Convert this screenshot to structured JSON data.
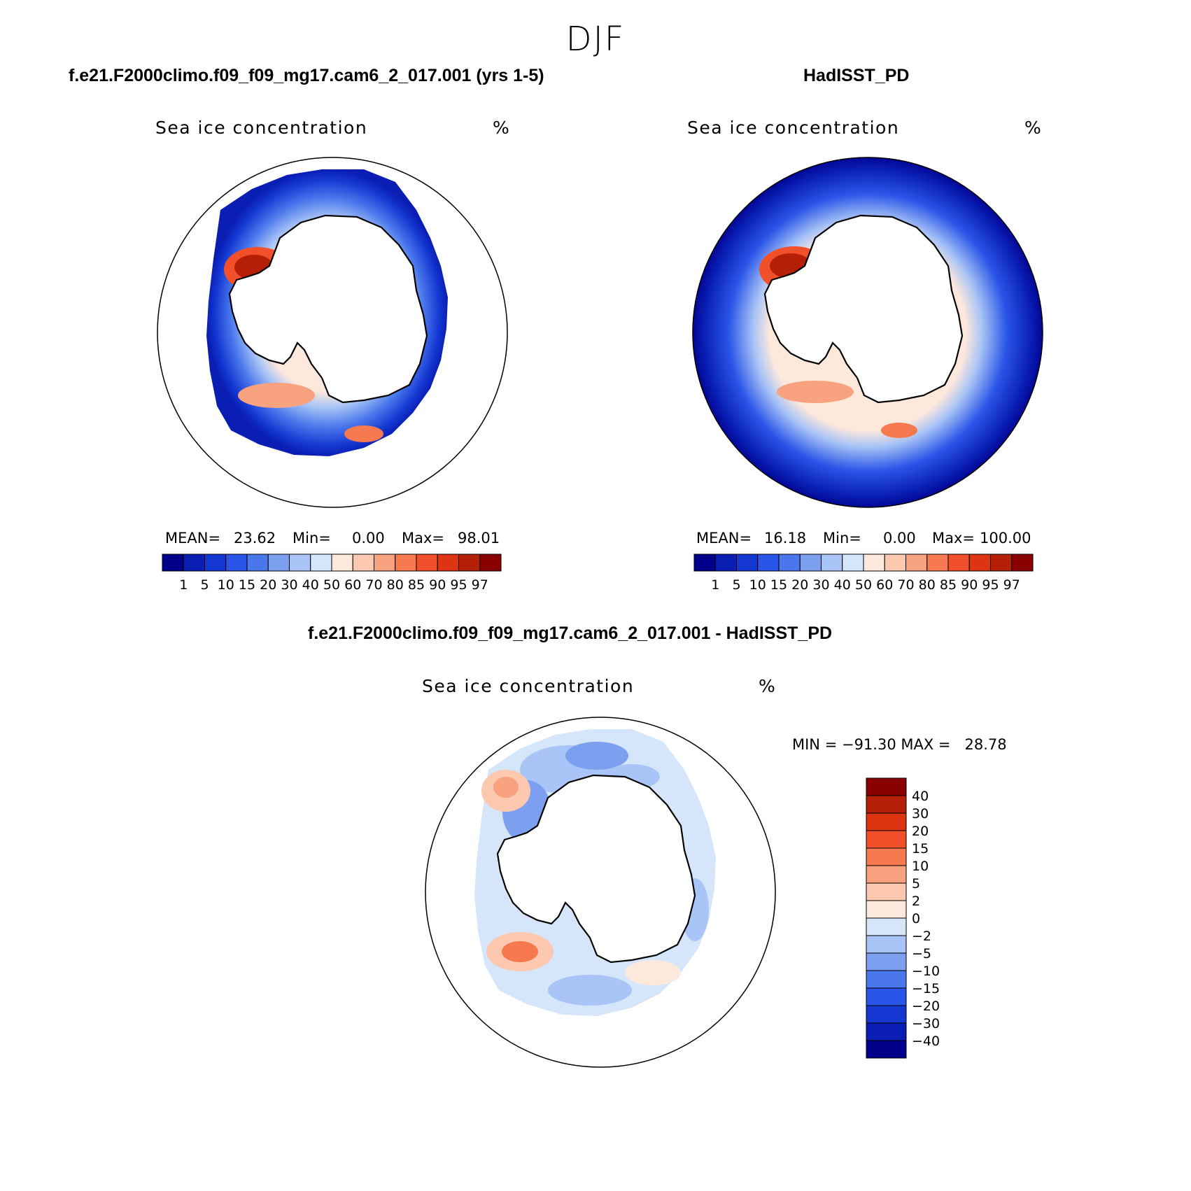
{
  "title": "DJF",
  "panels": {
    "left": {
      "case_title": "f.e21.F2000climo.f09_f09_mg17.cam6_2_017.001 (yrs 1-5)",
      "variable": "Sea ice concentration",
      "units": "%",
      "mean_label": "MEAN=",
      "mean_value": "23.62",
      "min_label": "Min=",
      "min_value": "0.00",
      "max_label": "Max=",
      "max_value": "98.01"
    },
    "right": {
      "case_title": "HadISST_PD",
      "variable": "Sea ice concentration",
      "units": "%",
      "mean_label": "MEAN=",
      "mean_value": "16.18",
      "min_label": "Min=",
      "min_value": "0.00",
      "max_label": "Max=",
      "max_value": "100.00"
    },
    "diff": {
      "case_title": "f.e21.F2000climo.f09_f09_mg17.cam6_2_017.001 - HadISST_PD",
      "variable": "Sea ice concentration",
      "units": "%",
      "minmax_text": "MIN = −91.30 MAX =   28.78"
    }
  },
  "colorbar_abs": {
    "colors": [
      "#00008b",
      "#0a1eb4",
      "#1437d2",
      "#2a55e8",
      "#4a78ec",
      "#7c9ff0",
      "#a9c4f6",
      "#d6e6fa",
      "#fde8dc",
      "#fcc8b0",
      "#f9a27f",
      "#f6794f",
      "#f1502a",
      "#dd3412",
      "#b51f08",
      "#8a0000"
    ],
    "ticks": [
      "1",
      "5",
      "10",
      "15",
      "20",
      "30",
      "40",
      "50",
      "60",
      "70",
      "80",
      "85",
      "90",
      "95",
      "97"
    ]
  },
  "colorbar_diff": {
    "colors": [
      "#8a0000",
      "#b51f08",
      "#dd3412",
      "#f1502a",
      "#f6794f",
      "#f9a27f",
      "#fcc8b0",
      "#fde8dc",
      "#d6e6fa",
      "#a9c4f6",
      "#7c9ff0",
      "#4a78ec",
      "#2a55e8",
      "#1437d2",
      "#0a1eb4",
      "#00008b"
    ],
    "ticks": [
      "40",
      "30",
      "20",
      "15",
      "10",
      "5",
      "2",
      "0",
      "−2",
      "−5",
      "−10",
      "−15",
      "−20",
      "−30",
      "−40"
    ]
  }
}
